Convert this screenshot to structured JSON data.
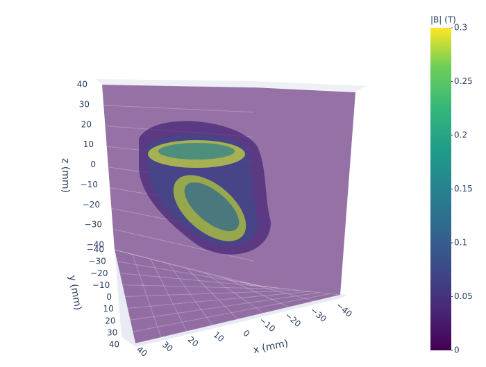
{
  "chart_data": {
    "type": "volume",
    "x_title": "x (mm)",
    "y_title": "y (mm)",
    "z_title": "z (mm)",
    "xlim": [
      -40,
      40
    ],
    "ylim": [
      -40,
      40
    ],
    "zlim": [
      -40,
      40
    ],
    "xticks": [
      {
        "value": 40,
        "label": "40"
      },
      30,
      20,
      10,
      0,
      {
        "value": -10,
        "label": "−10"
      },
      {
        "value": -20,
        "label": "−20"
      },
      {
        "value": -30,
        "label": "−30"
      },
      {
        "value": -40,
        "label": "−40"
      }
    ],
    "yticks": [
      {
        "value": -40,
        "label": "−40"
      },
      {
        "value": -30,
        "label": "−30"
      },
      {
        "value": -20,
        "label": "−20"
      },
      {
        "value": -10,
        "label": "−10"
      },
      0,
      10,
      20,
      30,
      40
    ],
    "zticks": [
      40,
      30,
      20,
      10,
      0,
      {
        "value": -10,
        "label": "−10"
      },
      {
        "value": -20,
        "label": "−20"
      },
      {
        "value": -30,
        "label": "−30"
      },
      {
        "value": -40,
        "label": "−40"
      }
    ],
    "colorbar_title": "|B| (T)",
    "clim": [
      0,
      0.3
    ],
    "cticks": [
      0,
      0.05,
      0.1,
      0.15,
      0.2,
      0.25,
      0.3
    ]
  }
}
